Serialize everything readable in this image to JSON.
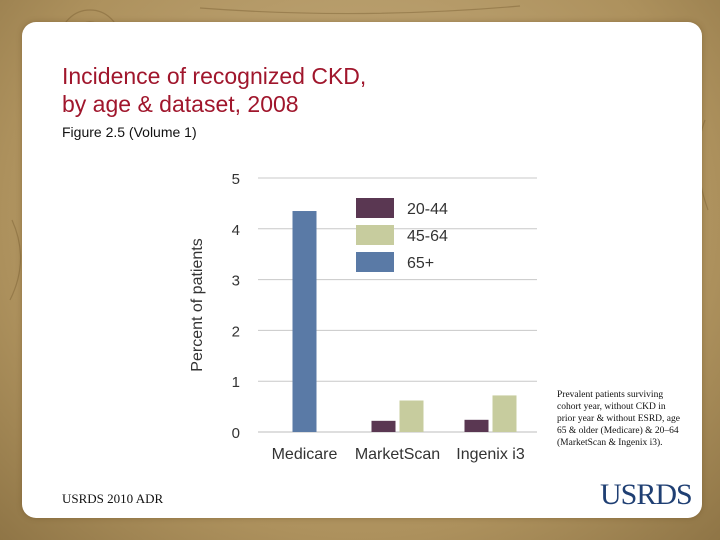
{
  "slide": {
    "title_line1": "Incidence of recognized CKD,",
    "title_line2": "by age & dataset, 2008",
    "subtitle": "Figure 2.5 (Volume 1)",
    "note": "Prevalent patients surviving cohort year, without CKD in prior year & without ESRD, age 65 & older (Medicare) & 20–64 (MarketScan & Ingenix i3).",
    "footer": "USRDS 2010 ADR",
    "logo": "USRDS",
    "colors": {
      "title": "#a0162c",
      "frame": "#b49a6a",
      "logo": "#1f3f73"
    }
  },
  "chart_data": {
    "type": "bar",
    "title": "",
    "xlabel": "",
    "ylabel": "Percent of patients",
    "ylim": [
      0,
      5
    ],
    "yticks": [
      "0",
      "1",
      "2",
      "3",
      "4",
      "5"
    ],
    "grid": true,
    "legend_position": "top-right",
    "categories": [
      "Medicare",
      "MarketScan",
      "Ingenix i3"
    ],
    "series": [
      {
        "name": "20-44",
        "color": "#5a3752",
        "values": [
          null,
          0.22,
          0.24
        ]
      },
      {
        "name": "45-64",
        "color": "#c7cc9e",
        "values": [
          null,
          0.62,
          0.72
        ]
      },
      {
        "name": "65+",
        "color": "#5a7aa6",
        "values": [
          4.35,
          null,
          null
        ]
      }
    ]
  }
}
